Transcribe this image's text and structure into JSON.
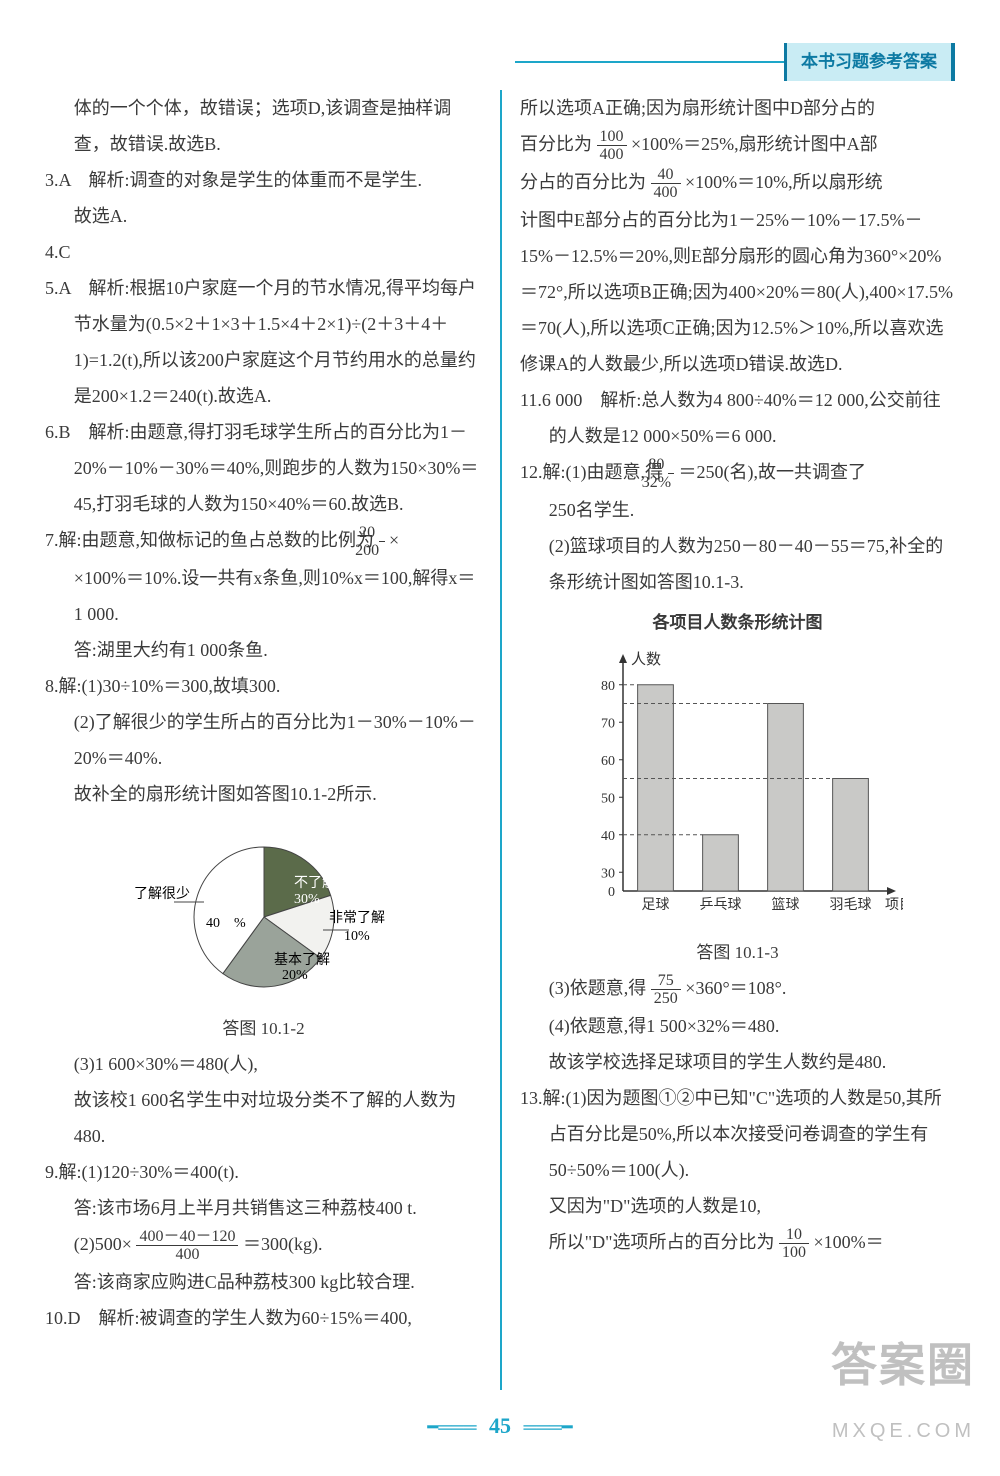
{
  "header": {
    "title": "本书习题参考答案"
  },
  "left": {
    "p1": "体的一个个体，故错误；选项D,该调查是抽样调查，故错误.故选B.",
    "p2a": "3.A　解析:调查的对象是学生的体重而不是学生.",
    "p2b": "故选A.",
    "p3": "4.C",
    "p4a": "5.A　解析:根据10户家庭一个月的节水情况,得平均每户节水量为(0.5×2＋1×3＋1.5×4＋2×1)÷(2＋3＋4＋1)=1.2(t),所以该200户家庭这个月节约用水的总量约是200×1.2＝240(t).故选A.",
    "p5a": "6.B　解析:由题意,得打羽毛球学生所占的百分比为1－20%－10%－30%＝40%,则跑步的人数为150×30%＝45,打羽毛球的人数为150×40%＝60.故选B.",
    "p6a": "7.解:由题意,知做标记的鱼占总数的比例为",
    "p6frac_n": "20",
    "p6frac_d": "200",
    "p6b": "×100%＝10%.设一共有x条鱼,则10%x＝100,解得x＝1 000.",
    "p6c": "答:湖里大约有1 000条鱼.",
    "p7a": "8.解:(1)30÷10%＝300,故填300.",
    "p7b": "(2)了解很少的学生所占的百分比为1－30%－10%－20%＝40%.",
    "p7c": "故补全的扇形统计图如答图10.1-2所示.",
    "p7d": "(3)1 600×30%＝480(人),",
    "p7e": "故该校1 600名学生中对垃圾分类不了解的人数为480.",
    "p8a": "9.解:(1)120÷30%＝400(t).",
    "p8b": "答:该市场6月上半月共销售这三种荔枝400 t.",
    "p8c_pre": "(2)500×",
    "p8c_frac_n": "400－40－120",
    "p8c_frac_d": "400",
    "p8c_post": "＝300(kg).",
    "p8d": "答:该商家应购进C品种荔枝300 kg比较合理.",
    "p9": "10.D　解析:被调查的学生人数为60÷15%＝400,",
    "pie": {
      "caption": "答图 10.1-2",
      "slices": [
        {
          "label": "不了解",
          "sub": "30%",
          "value": 30,
          "color": "#5b6b4a"
        },
        {
          "label": "非常了解",
          "sub": "10%",
          "value": 10,
          "color": "#f2f2ef"
        },
        {
          "label": "基本了解",
          "sub": "20%",
          "value": 20,
          "color": "#9aa39a"
        },
        {
          "label": "了解很少",
          "sub": "40　%",
          "value": 40,
          "color": "#ffffff"
        }
      ],
      "stroke": "#444444"
    }
  },
  "right": {
    "p1a": "所以选项A正确;因为扇形统计图中D部分占的",
    "p1b_pre": "百分比为",
    "p1b_frac_n": "100",
    "p1b_frac_d": "400",
    "p1b_post": "×100%＝25%,扇形统计图中A部",
    "p1c_pre": "分占的百分比为",
    "p1c_frac_n": "40",
    "p1c_frac_d": "400",
    "p1c_post": "×100%＝10%,所以扇形统",
    "p1d": "计图中E部分占的百分比为1－25%－10%－17.5%－15%－12.5%＝20%,则E部分扇形的圆心角为360°×20%＝72°,所以选项B正确;因为400×20%＝80(人),400×17.5%＝70(人),所以选项C正确;因为12.5%＞10%,所以喜欢选修课A的人数最少,所以选项D错误.故选D.",
    "p2": "11.6 000　解析:总人数为4 800÷40%＝12 000,公交前往的人数是12 000×50%＝6 000.",
    "p3a_pre": "12.解:(1)由题意,得",
    "p3a_frac_n": "80",
    "p3a_frac_d": "32%",
    "p3a_post": "＝250(名),故一共调查了",
    "p3b": "250名学生.",
    "p3c": "(2)篮球项目的人数为250－80－40－55＝75,补全的条形统计图如答图10.1-3.",
    "p3d_pre": "(3)依题意,得",
    "p3d_frac_n": "75",
    "p3d_frac_d": "250",
    "p3d_post": "×360°＝108°.",
    "p3e": "(4)依题意,得1 500×32%＝480.",
    "p3f": "故该学校选择足球项目的学生人数约是480.",
    "p4a": "13.解:(1)因为题图①②中已知\"C\"选项的人数是50,其所占百分比是50%,所以本次接受问卷调查的学生有50÷50%＝100(人).",
    "p4b": "又因为\"D\"选项的人数是10,",
    "p4c_pre": "所以\"D\"选项所占的百分比为",
    "p4c_frac_n": "10",
    "p4c_frac_d": "100",
    "p4c_post": "×100%＝",
    "bar": {
      "title": "各项目人数条形统计图",
      "caption": "答图 10.1-3",
      "ylabel": "人数",
      "xlabel": "项目",
      "categories": [
        "足球",
        "乒乓球",
        "篮球",
        "羽毛球"
      ],
      "values": [
        80,
        40,
        75,
        55
      ],
      "yticks": [
        30,
        40,
        50,
        60,
        70,
        80
      ],
      "y_max": 85,
      "y_min": 25,
      "bar_color": "#c9c9c7",
      "highlight_color": "#bdbdbd",
      "axis_color": "#333333",
      "dash_color": "#555555"
    }
  },
  "pageno": "45",
  "watermark": {
    "big": "答案圈",
    "small": "MXQE.COM"
  }
}
